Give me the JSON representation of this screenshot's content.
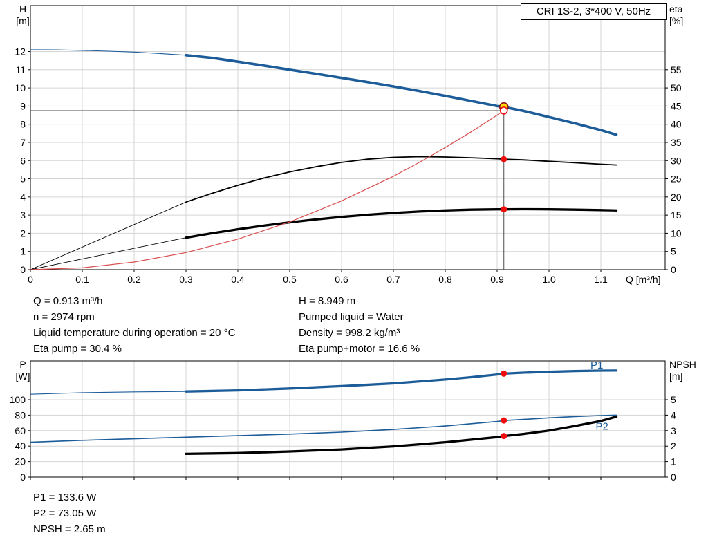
{
  "title_box": {
    "label": "CRI 1S-2, 3*400 V, 50Hz"
  },
  "info": {
    "duty_left": [
      "Q = 0.913 m³/h",
      "n = 2974 rpm",
      "Liquid temperature during operation = 20 °C",
      "Eta pump = 30.4 %"
    ],
    "duty_right": [
      "H = 8.949 m",
      "Pumped liquid = Water",
      "Density = 998.2 kg/m³",
      "Eta pump+motor = 16.6 %"
    ],
    "power_npsh": [
      "P1 = 133.6 W",
      "P2 = 73.05 W",
      "NPSH = 2.65 m"
    ]
  },
  "colors": {
    "curve_blue": "#1c5c99",
    "curve_black": "#000000",
    "curve_red": "#d94f4f",
    "dot_red": "#ee0c0c",
    "dot_yellow": "#ffd800",
    "dot_yellow_ring": "#8b1a1a",
    "grid": "#d4d4d4",
    "axis": "#000000",
    "ref_line": "#4d4d4d"
  },
  "chart_data": [
    {
      "name": "head-efficiency-chart",
      "type": "line",
      "x_axis": {
        "label": "Q [m³/h]",
        "min": 0,
        "max": 1.224,
        "ticks": [
          0,
          0.1,
          0.2,
          0.3,
          0.4,
          0.5,
          0.6,
          0.7,
          0.8,
          0.9,
          1.0,
          1.1
        ],
        "tick_labels": [
          "0",
          "0.1",
          "0.2",
          "0.3",
          "0.4",
          "0.5",
          "0.6",
          "0.7",
          "0.8",
          "0.9",
          "1.0",
          "1.1"
        ]
      },
      "y_left": {
        "label_lines": [
          "H",
          "[m]"
        ],
        "min": 0,
        "max": 14.53,
        "ticks": [
          0,
          1,
          2,
          3,
          4,
          5,
          6,
          7,
          8,
          9,
          10,
          11,
          12
        ]
      },
      "y_right": {
        "label_lines": [
          "eta",
          "[%]"
        ],
        "min": 0,
        "max": 72.65,
        "ticks": [
          0,
          5,
          10,
          15,
          20,
          25,
          30,
          35,
          40,
          45,
          50,
          55
        ]
      },
      "series": [
        {
          "name": "hq-curve-extrapolated",
          "axis": "left",
          "color": "curve_blue",
          "width": 1.1,
          "points": [
            [
              0,
              12.1
            ],
            [
              0.05,
              12.09
            ],
            [
              0.1,
              12.06
            ],
            [
              0.15,
              12.02
            ],
            [
              0.2,
              11.97
            ],
            [
              0.25,
              11.89
            ],
            [
              0.3,
              11.8
            ]
          ]
        },
        {
          "name": "hq-curve",
          "axis": "left",
          "color": "curve_blue",
          "width": 3.6,
          "points": [
            [
              0.3,
              11.8
            ],
            [
              0.35,
              11.65
            ],
            [
              0.4,
              11.44
            ],
            [
              0.45,
              11.23
            ],
            [
              0.5,
              11.0
            ],
            [
              0.55,
              10.78
            ],
            [
              0.6,
              10.55
            ],
            [
              0.65,
              10.32
            ],
            [
              0.7,
              10.08
            ],
            [
              0.75,
              9.83
            ],
            [
              0.8,
              9.56
            ],
            [
              0.85,
              9.28
            ],
            [
              0.9,
              9.0
            ],
            [
              0.913,
              8.949
            ],
            [
              0.95,
              8.74
            ],
            [
              1.0,
              8.4
            ],
            [
              1.05,
              8.05
            ],
            [
              1.1,
              7.68
            ],
            [
              1.13,
              7.42
            ]
          ]
        },
        {
          "name": "eta-pump-extrapolation-line",
          "axis": "right",
          "color": "curve_black",
          "width": 0.9,
          "points": [
            [
              0,
              0
            ],
            [
              0.3,
              18.6
            ]
          ]
        },
        {
          "name": "eta-pump-curve",
          "axis": "right",
          "color": "curve_black",
          "width": 1.8,
          "points": [
            [
              0.3,
              18.6
            ],
            [
              0.35,
              21.0
            ],
            [
              0.4,
              23.2
            ],
            [
              0.45,
              25.2
            ],
            [
              0.5,
              26.9
            ],
            [
              0.55,
              28.3
            ],
            [
              0.6,
              29.5
            ],
            [
              0.65,
              30.4
            ],
            [
              0.7,
              30.9
            ],
            [
              0.75,
              31.1
            ],
            [
              0.8,
              31.0
            ],
            [
              0.85,
              30.8
            ],
            [
              0.9,
              30.5
            ],
            [
              0.913,
              30.4
            ],
            [
              0.95,
              30.2
            ],
            [
              1.0,
              29.8
            ],
            [
              1.05,
              29.4
            ],
            [
              1.1,
              29.0
            ],
            [
              1.13,
              28.8
            ]
          ]
        },
        {
          "name": "eta-pump-motor-extrapolation-line",
          "axis": "right",
          "color": "curve_black",
          "width": 0.9,
          "points": [
            [
              0,
              0
            ],
            [
              0.3,
              8.8
            ]
          ]
        },
        {
          "name": "eta-pump-motor-curve",
          "axis": "right",
          "color": "curve_black",
          "width": 3.3,
          "points": [
            [
              0.3,
              8.8
            ],
            [
              0.35,
              10.0
            ],
            [
              0.4,
              11.1
            ],
            [
              0.45,
              12.1
            ],
            [
              0.5,
              13.0
            ],
            [
              0.55,
              13.8
            ],
            [
              0.6,
              14.5
            ],
            [
              0.65,
              15.1
            ],
            [
              0.7,
              15.6
            ],
            [
              0.75,
              16.0
            ],
            [
              0.8,
              16.3
            ],
            [
              0.85,
              16.5
            ],
            [
              0.9,
              16.6
            ],
            [
              0.913,
              16.6
            ],
            [
              0.95,
              16.65
            ],
            [
              1.0,
              16.6
            ],
            [
              1.05,
              16.5
            ],
            [
              1.1,
              16.4
            ],
            [
              1.13,
              16.3
            ]
          ]
        },
        {
          "name": "system-curve",
          "axis": "left",
          "color": "curve_red",
          "width": 1.2,
          "points": [
            [
              0,
              0
            ],
            [
              0.1,
              0.1
            ],
            [
              0.2,
              0.42
            ],
            [
              0.3,
              0.94
            ],
            [
              0.4,
              1.68
            ],
            [
              0.5,
              2.62
            ],
            [
              0.6,
              3.78
            ],
            [
              0.7,
              5.14
            ],
            [
              0.75,
              5.9
            ],
            [
              0.8,
              6.72
            ],
            [
              0.85,
              7.58
            ],
            [
              0.9,
              8.5
            ],
            [
              0.913,
              8.75
            ]
          ]
        }
      ],
      "ref_lines": [
        {
          "name": "duty-vertical-line",
          "type": "v",
          "axis": "left",
          "x": 0.913,
          "y_from": 0,
          "y_to": 8.949
        },
        {
          "name": "duty-horizontal-line",
          "type": "h",
          "axis": "left",
          "y": 8.75,
          "x_from": 0,
          "x_to": 0.913
        }
      ],
      "markers": [
        {
          "name": "duty-point-hq",
          "x": 0.913,
          "y": 8.949,
          "axis": "left",
          "style": "yellow"
        },
        {
          "name": "duty-point-system",
          "x": 0.913,
          "y": 8.75,
          "axis": "left",
          "style": "open-red"
        },
        {
          "name": "duty-point-eta-pump",
          "x": 0.913,
          "y": 30.4,
          "axis": "right",
          "style": "red"
        },
        {
          "name": "duty-point-eta-total",
          "x": 0.913,
          "y": 16.6,
          "axis": "right",
          "style": "red"
        }
      ],
      "series_labels": []
    },
    {
      "name": "power-npsh-chart",
      "type": "line",
      "x_axis": {
        "label": "",
        "min": 0,
        "max": 1.224,
        "ticks": [
          0,
          0.1,
          0.2,
          0.3,
          0.4,
          0.5,
          0.6,
          0.7,
          0.8,
          0.9,
          1.0,
          1.1
        ],
        "tick_labels": []
      },
      "y_left": {
        "label_lines": [
          "P",
          "[W]"
        ],
        "min": 0,
        "max": 150,
        "ticks": [
          0,
          20,
          40,
          60,
          80,
          100
        ]
      },
      "y_right": {
        "label_lines": [
          "NPSH",
          "[m]"
        ],
        "min": 0,
        "max": 7.5,
        "ticks": [
          0,
          1,
          2,
          3,
          4,
          5
        ]
      },
      "series": [
        {
          "name": "p1-curve-extrapolated",
          "axis": "left",
          "color": "curve_blue",
          "width": 1.1,
          "points": [
            [
              0,
              107
            ],
            [
              0.1,
              109
            ],
            [
              0.2,
              110
            ],
            [
              0.3,
              110.5
            ]
          ]
        },
        {
          "name": "p1-curve",
          "axis": "left",
          "color": "curve_blue",
          "width": 3.3,
          "points": [
            [
              0.3,
              110.5
            ],
            [
              0.4,
              112
            ],
            [
              0.5,
              114.5
            ],
            [
              0.6,
              117.5
            ],
            [
              0.7,
              121
            ],
            [
              0.8,
              126
            ],
            [
              0.85,
              129
            ],
            [
              0.9,
              132.5
            ],
            [
              0.913,
              133.6
            ],
            [
              0.95,
              134.8
            ],
            [
              1.0,
              136
            ],
            [
              1.05,
              137
            ],
            [
              1.1,
              137.5
            ],
            [
              1.13,
              137.6
            ]
          ]
        },
        {
          "name": "p2-curve",
          "axis": "left",
          "color": "curve_blue",
          "width": 1.6,
          "points": [
            [
              0,
              45
            ],
            [
              0.1,
              47.5
            ],
            [
              0.2,
              49.5
            ],
            [
              0.3,
              51.5
            ],
            [
              0.4,
              53.5
            ],
            [
              0.5,
              55.5
            ],
            [
              0.6,
              58
            ],
            [
              0.7,
              61.5
            ],
            [
              0.8,
              66
            ],
            [
              0.9,
              71.8
            ],
            [
              0.913,
              73.05
            ],
            [
              0.95,
              74.5
            ],
            [
              1.0,
              76.5
            ],
            [
              1.05,
              78.2
            ],
            [
              1.1,
              79.5
            ],
            [
              1.13,
              80
            ]
          ]
        },
        {
          "name": "npsh-curve",
          "axis": "right",
          "color": "curve_black",
          "width": 3.3,
          "points": [
            [
              0.3,
              1.5
            ],
            [
              0.4,
              1.55
            ],
            [
              0.5,
              1.65
            ],
            [
              0.6,
              1.78
            ],
            [
              0.7,
              1.98
            ],
            [
              0.8,
              2.25
            ],
            [
              0.9,
              2.58
            ],
            [
              0.913,
              2.65
            ],
            [
              0.95,
              2.78
            ],
            [
              1.0,
              3.0
            ],
            [
              1.05,
              3.3
            ],
            [
              1.1,
              3.62
            ],
            [
              1.13,
              3.9
            ]
          ]
        }
      ],
      "ref_lines": [],
      "markers": [
        {
          "name": "duty-point-p1",
          "x": 0.913,
          "y": 133.6,
          "axis": "left",
          "style": "red"
        },
        {
          "name": "duty-point-p2",
          "x": 0.913,
          "y": 73.05,
          "axis": "left",
          "style": "red"
        },
        {
          "name": "duty-point-npsh",
          "x": 0.913,
          "y": 2.65,
          "axis": "right",
          "style": "red"
        }
      ],
      "series_labels": [
        {
          "name": "p1-series-label",
          "text": "P1",
          "x": 1.08,
          "y": 140,
          "axis": "left",
          "color": "curve_blue"
        },
        {
          "name": "p2-series-label",
          "text": "P2",
          "x": 1.09,
          "y": 61,
          "axis": "left",
          "color": "curve_blue"
        }
      ]
    }
  ]
}
